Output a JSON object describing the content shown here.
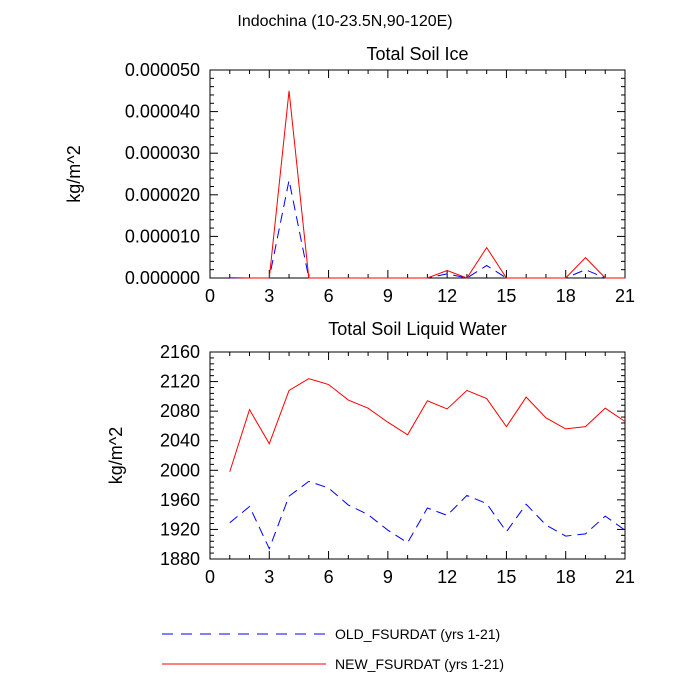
{
  "figure_title": "Indochina (10-23.5N,90-120E)",
  "legend": [
    {
      "label": "OLD_FSURDAT (yrs 1-21)",
      "color": "#0000ff",
      "dash": "dashed"
    },
    {
      "label": "NEW_FSURDAT (yrs 1-21)",
      "color": "#ff0000",
      "dash": "solid"
    }
  ],
  "chart_data": [
    {
      "type": "line",
      "title": "Total Soil Ice",
      "xlabel": "",
      "ylabel": "kg/m^2",
      "xlim": [
        0,
        21
      ],
      "ylim": [
        0,
        5e-05
      ],
      "xticks": [
        0,
        3,
        6,
        9,
        12,
        15,
        18,
        21
      ],
      "xtick_labels": [
        "0",
        "3",
        "6",
        "9",
        "12",
        "15",
        "18",
        "21"
      ],
      "yticks": [
        0,
        1e-05,
        2e-05,
        3e-05,
        4e-05,
        5e-05
      ],
      "ytick_labels": [
        "0.000000",
        "0.000010",
        "0.000020",
        "0.000030",
        "0.000040",
        "0.000050"
      ],
      "grid": false,
      "x": [
        1,
        2,
        3,
        4,
        5,
        6,
        7,
        8,
        9,
        10,
        11,
        12,
        13,
        14,
        15,
        16,
        17,
        18,
        19,
        20,
        21
      ],
      "series": [
        {
          "name": "OLD_FSURDAT (yrs 1-21)",
          "color": "#0000ff",
          "dash": "dashed",
          "values": [
            0,
            0,
            0,
            2.35e-05,
            0,
            0,
            0,
            0,
            0,
            0,
            0,
            1e-06,
            0,
            3e-06,
            0,
            0,
            0,
            0,
            2e-06,
            0,
            0
          ]
        },
        {
          "name": "NEW_FSURDAT (yrs 1-21)",
          "color": "#ff0000",
          "dash": "solid",
          "values": [
            1e-07,
            0,
            0,
            4.5e-05,
            0,
            0,
            0,
            0,
            0,
            0,
            0,
            1.8e-06,
            0,
            7.3e-06,
            0,
            0,
            0,
            0,
            4.9e-06,
            0,
            0
          ]
        }
      ]
    },
    {
      "type": "line",
      "title": "Total Soil Liquid Water",
      "xlabel": "",
      "ylabel": "kg/m^2",
      "xlim": [
        0,
        21
      ],
      "ylim": [
        1880,
        2160
      ],
      "xticks": [
        0,
        3,
        6,
        9,
        12,
        15,
        18,
        21
      ],
      "xtick_labels": [
        "0",
        "3",
        "6",
        "9",
        "12",
        "15",
        "18",
        "21"
      ],
      "yticks": [
        1880,
        1920,
        1960,
        2000,
        2040,
        2080,
        2120,
        2160
      ],
      "ytick_labels": [
        "1880",
        "1920",
        "1960",
        "2000",
        "2040",
        "2080",
        "2120",
        "2160"
      ],
      "grid": false,
      "x": [
        1,
        2,
        3,
        4,
        5,
        6,
        7,
        8,
        9,
        10,
        11,
        12,
        13,
        14,
        15,
        16,
        17,
        18,
        19,
        20,
        21
      ],
      "series": [
        {
          "name": "OLD_FSURDAT (yrs 1-21)",
          "color": "#0000ff",
          "dash": "dashed",
          "values": [
            1929,
            1951,
            1894,
            1965,
            1985,
            1976,
            1953,
            1940,
            1919,
            1902,
            1949,
            1939,
            1966,
            1955,
            1917,
            1954,
            1926,
            1911,
            1914,
            1938,
            1919
          ]
        },
        {
          "name": "NEW_FSURDAT (yrs 1-21)",
          "color": "#ff0000",
          "dash": "solid",
          "values": [
            1998,
            2082,
            2036,
            2108,
            2124,
            2116,
            2095,
            2084,
            2065,
            2048,
            2094,
            2083,
            2108,
            2097,
            2059,
            2099,
            2071,
            2056,
            2059,
            2084,
            2066
          ]
        }
      ]
    }
  ]
}
